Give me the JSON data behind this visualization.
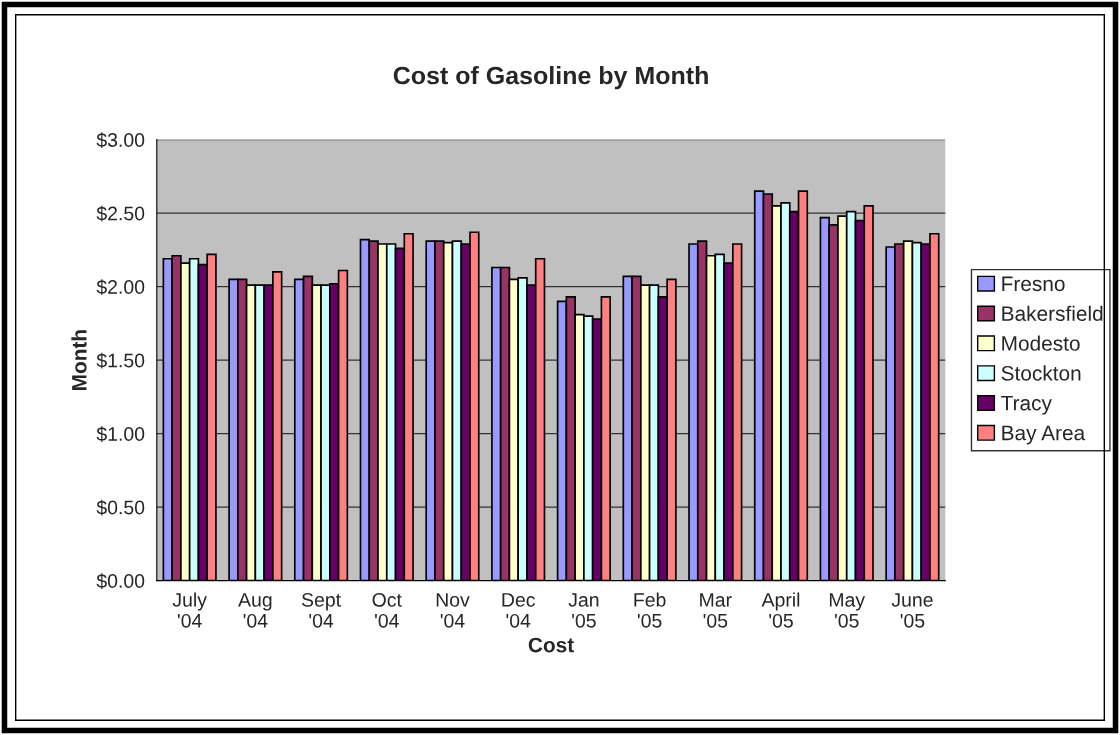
{
  "chart_data": {
    "type": "bar",
    "title": "Cost of Gasoline by Month",
    "xlabel": "Cost",
    "ylabel": "Month",
    "categories": [
      "July\n'04",
      "Aug\n'04",
      "Sept\n'04",
      "Oct\n'04",
      "Nov\n'04",
      "Dec\n'04",
      "Jan\n'05",
      "Feb\n'05",
      "Mar\n'05",
      "April\n'05",
      "May\n'05",
      "June\n'05"
    ],
    "series": [
      {
        "name": "Fresno",
        "color": "#9999ff",
        "values": [
          2.19,
          2.05,
          2.05,
          2.32,
          2.31,
          2.13,
          1.9,
          2.07,
          2.29,
          2.65,
          2.47,
          2.27
        ]
      },
      {
        "name": "Bakersfield",
        "color": "#993366",
        "values": [
          2.21,
          2.05,
          2.07,
          2.31,
          2.31,
          2.13,
          1.93,
          2.07,
          2.31,
          2.63,
          2.42,
          2.29
        ]
      },
      {
        "name": "Modesto",
        "color": "#ffffcc",
        "values": [
          2.16,
          2.01,
          2.01,
          2.29,
          2.3,
          2.05,
          1.81,
          2.01,
          2.21,
          2.55,
          2.48,
          2.31
        ]
      },
      {
        "name": "Stockton",
        "color": "#ccffff",
        "values": [
          2.19,
          2.01,
          2.01,
          2.29,
          2.31,
          2.06,
          1.8,
          2.01,
          2.22,
          2.57,
          2.51,
          2.3
        ]
      },
      {
        "name": "Tracy",
        "color": "#660066",
        "values": [
          2.15,
          2.01,
          2.02,
          2.26,
          2.29,
          2.01,
          1.78,
          1.93,
          2.16,
          2.51,
          2.45,
          2.29
        ]
      },
      {
        "name": "Bay Area",
        "color": "#ff8080",
        "values": [
          2.22,
          2.1,
          2.11,
          2.36,
          2.37,
          2.19,
          1.93,
          2.05,
          2.29,
          2.65,
          2.55,
          2.36
        ]
      }
    ],
    "ylim": [
      0,
      3
    ],
    "yticks": [
      {
        "value": 0,
        "label": "$0.00"
      },
      {
        "value": 0.5,
        "label": "$0.50"
      },
      {
        "value": 1,
        "label": "$1.00"
      },
      {
        "value": 1.5,
        "label": "$1.50"
      },
      {
        "value": 2,
        "label": "$2.00"
      },
      {
        "value": 2.5,
        "label": "$2.50"
      },
      {
        "value": 3,
        "label": "$3.00"
      }
    ],
    "grid": "y",
    "legend": "right"
  }
}
